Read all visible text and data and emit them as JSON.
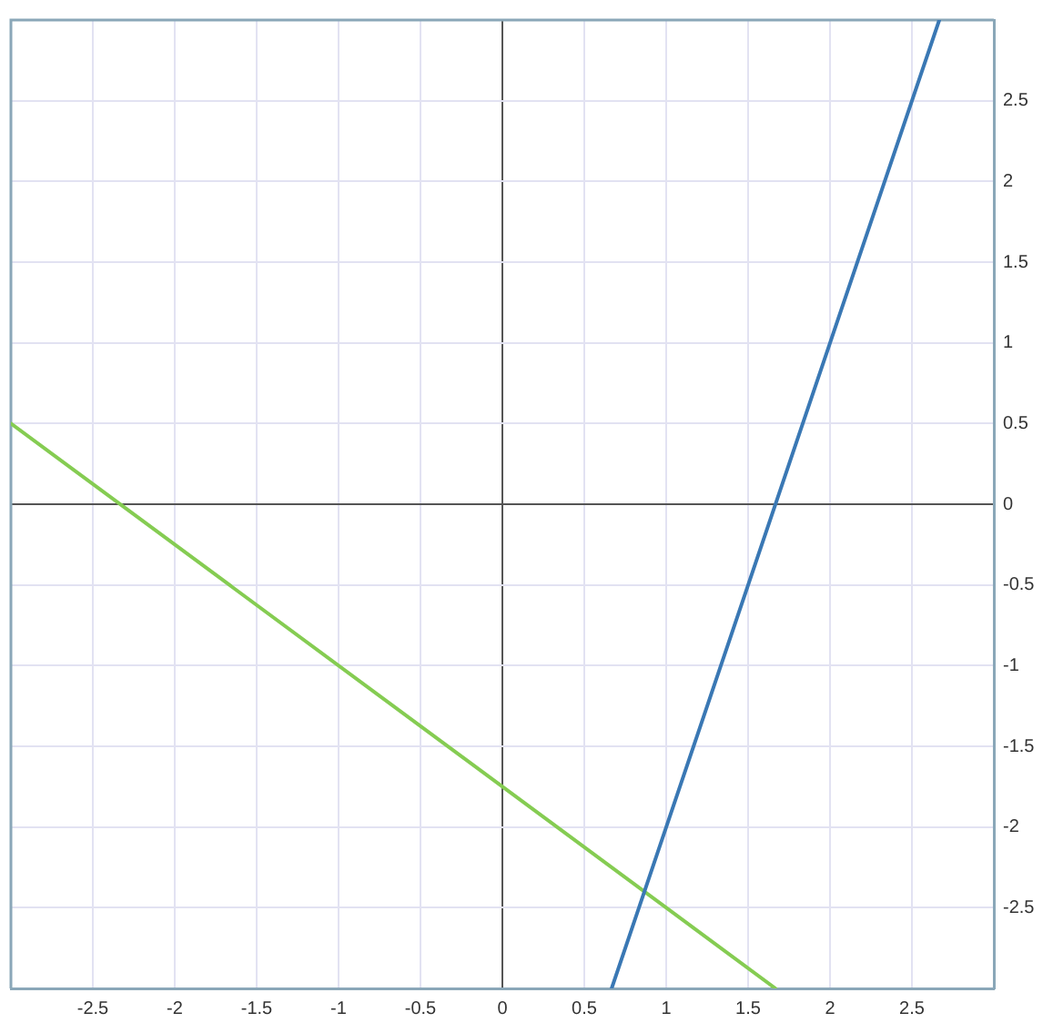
{
  "chart_data": {
    "type": "line",
    "xlim": [
      -3,
      3
    ],
    "ylim": [
      -3,
      3
    ],
    "xticks": [
      -2.5,
      -2,
      -1.5,
      -1,
      -0.5,
      0,
      0.5,
      1,
      1.5,
      2,
      2.5
    ],
    "yticks": [
      -2.5,
      -2,
      -1.5,
      -1,
      -0.5,
      0,
      0.5,
      1,
      1.5,
      2,
      2.5
    ],
    "series": [
      {
        "color": "#3a78b4",
        "x": [
          0.667,
          2.667
        ],
        "values": [
          -3,
          3
        ]
      },
      {
        "color": "#85cc52",
        "x": [
          -3,
          1.667
        ],
        "values": [
          0.5,
          -3
        ]
      }
    ],
    "grid": true,
    "legend": false,
    "marker": "none",
    "line_style": "solid"
  }
}
